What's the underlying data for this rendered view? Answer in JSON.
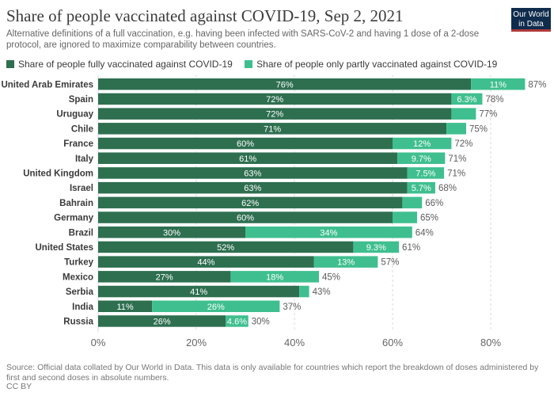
{
  "header": {
    "title": "Share of people vaccinated against COVID-19, Sep 2, 2021",
    "subtitle": "Alternative definitions of a full vaccination, e.g. having been infected with SARS-CoV-2 and having 1 dose of a 2-dose protocol, are ignored to maximize comparability between countries.",
    "logo_line1": "Our World",
    "logo_line2": "in Data"
  },
  "legend": {
    "full_label": "Share of people fully vaccinated against COVID-19",
    "partial_label": "Share of people only partly vaccinated against COVID-19"
  },
  "footer": {
    "source": "Source: Official data collated by Our World in Data. This data is only available for countries which report the breakdown of doses administered by first and second doses in absolute numbers.",
    "license": "CC BY"
  },
  "colors": {
    "full": "#2e6f50",
    "partial": "#3fbf8f",
    "grid": "#d9d9d9",
    "label": "#3a3a3a",
    "tick": "#666666",
    "total": "#5b5b5b"
  },
  "chart_data": {
    "type": "bar",
    "orientation": "horizontal",
    "stacked": true,
    "categories": [
      "United Arab Emirates",
      "Spain",
      "Uruguay",
      "Chile",
      "France",
      "Italy",
      "United Kingdom",
      "Israel",
      "Bahrain",
      "Germany",
      "Brazil",
      "United States",
      "Turkey",
      "Mexico",
      "Serbia",
      "India",
      "Russia"
    ],
    "series": [
      {
        "name": "Share of people fully vaccinated against COVID-19",
        "values": [
          76,
          72,
          72,
          71,
          60,
          61,
          63,
          63,
          62,
          60,
          30,
          52,
          44,
          27,
          41,
          11,
          26
        ],
        "labels": [
          "76%",
          "72%",
          "72%",
          "71%",
          "60%",
          "61%",
          "63%",
          "63%",
          "62%",
          "60%",
          "30%",
          "52%",
          "44%",
          "27%",
          "41%",
          "11%",
          "26%"
        ]
      },
      {
        "name": "Share of people only partly vaccinated against COVID-19",
        "values": [
          11,
          6.3,
          5,
          4,
          12,
          9.7,
          7.5,
          5.7,
          4,
          5,
          34,
          9.3,
          13,
          18,
          2,
          26,
          4.6
        ],
        "labels": [
          "11%",
          "6.3%",
          "",
          "",
          "12%",
          "9.7%",
          "7.5%",
          "5.7%",
          "",
          "",
          "34%",
          "9.3%",
          "13%",
          "18%",
          "",
          "26%",
          "4.6%"
        ]
      }
    ],
    "totals": [
      "87%",
      "78%",
      "77%",
      "75%",
      "72%",
      "71%",
      "71%",
      "68%",
      "66%",
      "65%",
      "64%",
      "61%",
      "57%",
      "45%",
      "43%",
      "37%",
      "30%"
    ],
    "x_ticks": [
      "0%",
      "20%",
      "40%",
      "60%",
      "80%"
    ],
    "x_tick_values": [
      0,
      20,
      40,
      60,
      80
    ],
    "xlim": [
      0,
      90
    ],
    "grid": true,
    "legend_position": "top-left"
  }
}
